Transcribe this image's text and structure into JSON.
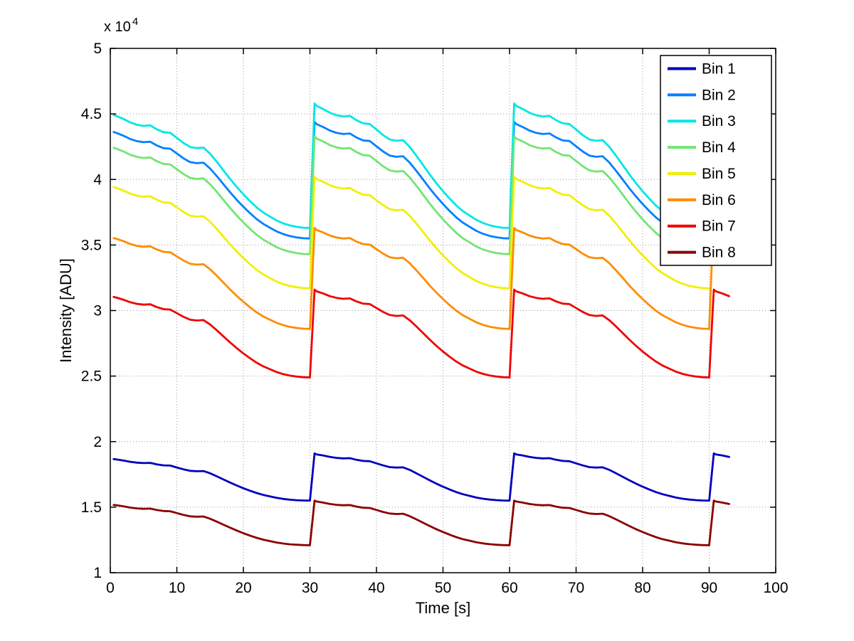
{
  "figure": {
    "background": "#ffffff",
    "axis_color": "#000000",
    "grid_color": "#9a9a9a"
  },
  "chart_data": {
    "type": "line",
    "title": "",
    "xlabel": "Time [s]",
    "ylabel": "Intensity [ADU]",
    "y_axis_multiplier": {
      "text": "x 10",
      "exponent": "4"
    },
    "y_unit_scale": 10000,
    "xlim": [
      0,
      100
    ],
    "ylim": [
      1,
      5
    ],
    "xticks": [
      0,
      10,
      20,
      30,
      40,
      50,
      60,
      70,
      80,
      90,
      100
    ],
    "yticks": [
      1,
      1.5,
      2,
      2.5,
      3,
      3.5,
      4,
      4.5,
      5
    ],
    "grid": true,
    "grid_style": "dotted",
    "legend_position": "northeast",
    "period_s": 30,
    "cycle_jump_rise_s": 0.7,
    "normalized_decay_shape": [
      0.0,
      0.02,
      0.045,
      0.075,
      0.095,
      0.105,
      0.1,
      0.135,
      0.16,
      0.165,
      0.21,
      0.255,
      0.29,
      0.3,
      0.295,
      0.35,
      0.42,
      0.495,
      0.57,
      0.64,
      0.705,
      0.765,
      0.82,
      0.865,
      0.9,
      0.935,
      0.96,
      0.978,
      0.99,
      0.998,
      1.0
    ],
    "series": [
      {
        "name": "Bin 1",
        "color": "#0000BE",
        "start": 1.87,
        "peak": 1.91,
        "min": 1.55,
        "end_t": 93,
        "end_mode": "full"
      },
      {
        "name": "Bin 2",
        "color": "#0080FF",
        "start": 4.37,
        "peak": 4.44,
        "min": 3.55,
        "end_t": 84,
        "end_mode": "decay"
      },
      {
        "name": "Bin 3",
        "color": "#00E6E6",
        "start": 4.5,
        "peak": 4.58,
        "min": 3.63,
        "end_t": 84,
        "end_mode": "decay"
      },
      {
        "name": "Bin 4",
        "color": "#73E573",
        "start": 4.25,
        "peak": 4.33,
        "min": 3.43,
        "end_t": 84,
        "end_mode": "decay"
      },
      {
        "name": "Bin 5",
        "color": "#F0F000",
        "start": 3.95,
        "peak": 4.02,
        "min": 3.17,
        "end_t": 90,
        "end_mode": "decay"
      },
      {
        "name": "Bin 6",
        "color": "#FF8C00",
        "start": 3.56,
        "peak": 3.63,
        "min": 2.86,
        "end_t": 90.5,
        "end_mode": "partial",
        "end_value": 3.5
      },
      {
        "name": "Bin 7",
        "color": "#F00000",
        "start": 3.11,
        "peak": 3.16,
        "min": 2.49,
        "end_t": 93,
        "end_mode": "full"
      },
      {
        "name": "Bin 8",
        "color": "#8B0000",
        "start": 1.52,
        "peak": 1.55,
        "min": 1.21,
        "end_t": 93,
        "end_mode": "full"
      }
    ]
  }
}
